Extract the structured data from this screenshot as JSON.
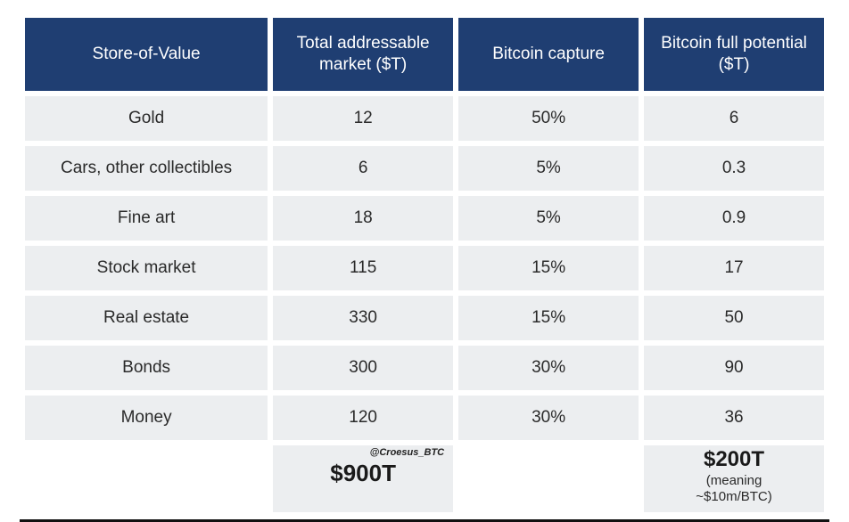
{
  "table": {
    "header_bg": "#1f3e72",
    "header_fg": "#ffffff",
    "row_bg": "#eceef0",
    "row_fg": "#2a2a2a",
    "font_family": "Segoe UI, Helvetica Neue, Arial, sans-serif",
    "header_fontsize_pt": 14,
    "cell_fontsize_pt": 14,
    "columns": [
      {
        "label": "Store-of-Value"
      },
      {
        "label": "Total addressable market ($T)"
      },
      {
        "label": "Bitcoin capture"
      },
      {
        "label": "Bitcoin full potential ($T)"
      }
    ],
    "rows": [
      {
        "sov": "Gold",
        "tam": "12",
        "capture": "50%",
        "full": "6"
      },
      {
        "sov": "Cars, other collectibles",
        "tam": "6",
        "capture": "5%",
        "full": "0.3"
      },
      {
        "sov": "Fine art",
        "tam": "18",
        "capture": "5%",
        "full": "0.9"
      },
      {
        "sov": "Stock market",
        "tam": "115",
        "capture": "15%",
        "full": "17"
      },
      {
        "sov": "Real estate",
        "tam": "330",
        "capture": "15%",
        "full": "50"
      },
      {
        "sov": "Bonds",
        "tam": "300",
        "capture": "30%",
        "full": "90"
      },
      {
        "sov": "Money",
        "tam": "120",
        "capture": "30%",
        "full": "36"
      }
    ],
    "footer": {
      "attribution": "@Croesus_BTC",
      "tam_total": "$900T",
      "full_total": "$200T",
      "full_sub1": "(meaning",
      "full_sub2": "~$10m/BTC)"
    }
  }
}
